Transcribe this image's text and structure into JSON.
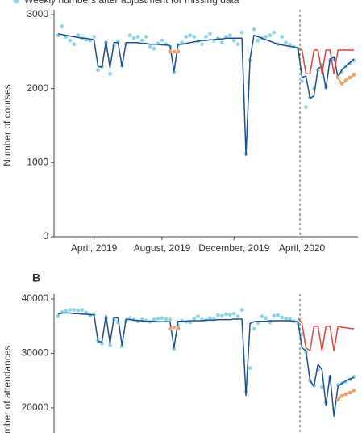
{
  "chart_data": [
    {
      "type": "line",
      "ylabel": "Number of courses",
      "legend": "top-left",
      "x": [
        4,
        5,
        6,
        7,
        8,
        9,
        10,
        11,
        12,
        13,
        14,
        15,
        16,
        17,
        18,
        19,
        20,
        21,
        22,
        23,
        24,
        25,
        26,
        27,
        28,
        29,
        30,
        31,
        32,
        33,
        34,
        35,
        36,
        37,
        38,
        39,
        40,
        41,
        42,
        43,
        44,
        45,
        46,
        47,
        48,
        49,
        50,
        51,
        52,
        53,
        54,
        55,
        56,
        57,
        58,
        59,
        60,
        61,
        62,
        63,
        64,
        65,
        66,
        67,
        68,
        69,
        70,
        71,
        72,
        73,
        74,
        75,
        76,
        77,
        78
      ],
      "xlim": [
        3,
        79
      ],
      "xticks": [
        {
          "value": 13,
          "label": "April, 2019"
        },
        {
          "value": 30,
          "label": "August, 2019"
        },
        {
          "value": 48,
          "label": "December, 2019"
        },
        {
          "value": 65,
          "label": "April, 2020"
        }
      ],
      "ylim": [
        0,
        3000
      ],
      "yticks": [
        0,
        1000,
        2000,
        3000
      ],
      "vline": 64.5,
      "series": [
        {
          "name": "Weekly numbers after adjustment for missing data",
          "style": "dots",
          "color": "#8fd3e8",
          "values": [
            2720,
            2840,
            2700,
            2650,
            2600,
            2720,
            2680,
            2660,
            2650,
            2700,
            2250,
            2300,
            2620,
            2200,
            2580,
            2640,
            2310,
            2600,
            2720,
            2680,
            2700,
            2650,
            2700,
            2560,
            2540,
            2610,
            2650,
            2600,
            2560,
            2220,
            2590,
            2620,
            2700,
            2720,
            2700,
            2640,
            2600,
            2700,
            2740,
            2650,
            2680,
            2620,
            2700,
            2720,
            2650,
            2600,
            2760,
            1120,
            2380,
            2800,
            2650,
            2680,
            2700,
            2720,
            2760,
            2600,
            2700,
            2620,
            2590,
            2560,
            2540,
            2100,
            1750,
            1880,
            2000,
            2250,
            2320,
            2020,
            2380,
            2400,
            2170,
            2230,
            2300,
            2340,
            2380
          ]
        },
        {
          "style": "line",
          "color": "#1c4f8c",
          "values": [
            2740,
            2730,
            2720,
            2710,
            2700,
            2690,
            2680,
            2680,
            2670,
            2660,
            2300,
            2290,
            2640,
            2280,
            2620,
            2620,
            2300,
            2620,
            2620,
            2620,
            2620,
            2610,
            2610,
            2600,
            2600,
            2600,
            2590,
            2590,
            2580,
            2230,
            2600,
            2600,
            2610,
            2620,
            2630,
            2640,
            2650,
            2650,
            2660,
            2660,
            2670,
            2670,
            2680,
            2680,
            2680,
            2680,
            2680,
            1100,
            2400,
            2720,
            2700,
            2680,
            2660,
            2640,
            2620,
            2600,
            2590,
            2580,
            2570,
            2560,
            2550,
            2150,
            2170,
            1870,
            1900,
            2270,
            2300,
            2000,
            2400,
            2430,
            2150,
            2260,
            2300,
            2350,
            2400
          ]
        },
        {
          "style": "line",
          "color": "#e0453a",
          "x": [
            64,
            65,
            66,
            67,
            68,
            69,
            70,
            71,
            72,
            73,
            74,
            75,
            76,
            77,
            78
          ],
          "values": [
            2550,
            2520,
            2200,
            2200,
            2520,
            2520,
            2200,
            2520,
            2520,
            2200,
            2520,
            2520,
            2520,
            2520,
            2520
          ]
        },
        {
          "style": "line",
          "color": "#a8a040",
          "x": [
            74,
            75,
            76,
            77,
            78
          ],
          "values": [
            2150,
            2060,
            2100,
            2150,
            2180
          ]
        },
        {
          "style": "dots",
          "color": "#f0a070",
          "x": [
            32,
            33,
            34,
            74,
            75,
            76,
            77,
            78
          ],
          "values": [
            2500,
            2500,
            2500,
            2150,
            2070,
            2110,
            2150,
            2190
          ]
        }
      ]
    },
    {
      "type": "line",
      "panel_label": "B",
      "ylabel": "Number of attendances",
      "x": [
        4,
        5,
        6,
        7,
        8,
        9,
        10,
        11,
        12,
        13,
        14,
        15,
        16,
        17,
        18,
        19,
        20,
        21,
        22,
        23,
        24,
        25,
        26,
        27,
        28,
        29,
        30,
        31,
        32,
        33,
        34,
        35,
        36,
        37,
        38,
        39,
        40,
        41,
        42,
        43,
        44,
        45,
        46,
        47,
        48,
        49,
        50,
        51,
        52,
        53,
        54,
        55,
        56,
        57,
        58,
        59,
        60,
        61,
        62,
        63,
        64,
        65,
        66,
        67,
        68,
        69,
        70,
        71,
        72,
        73,
        74,
        75,
        76,
        77,
        78
      ],
      "xlim": [
        3,
        79
      ],
      "ylim": [
        15400,
        40000
      ],
      "yticks": [
        20000,
        30000,
        40000
      ],
      "vline": 64.5,
      "series": [
        {
          "style": "dots",
          "color": "#8fd3e8",
          "values": [
            36800,
            37600,
            37800,
            38000,
            38000,
            37900,
            38000,
            37500,
            37000,
            37200,
            32300,
            31800,
            36500,
            31500,
            36200,
            35700,
            31300,
            35900,
            36500,
            36200,
            35900,
            36200,
            36000,
            35800,
            36200,
            36400,
            36500,
            36300,
            36200,
            30800,
            35200,
            36000,
            35800,
            35700,
            36400,
            36800,
            36200,
            36100,
            36500,
            36300,
            37000,
            36900,
            37200,
            37100,
            37300,
            36800,
            38000,
            23000,
            27300,
            34500,
            35600,
            36800,
            36500,
            35700,
            36900,
            37000,
            36600,
            36400,
            36300,
            35900,
            35500,
            33500,
            30300,
            25000,
            24100,
            27000,
            23800,
            21000,
            25500,
            19800,
            24200,
            24500,
            24800,
            25200,
            25700
          ]
        },
        {
          "style": "line",
          "color": "#1c4f8c",
          "values": [
            37200,
            37400,
            37400,
            37400,
            37300,
            37300,
            37200,
            37200,
            37100,
            37100,
            32200,
            32100,
            37000,
            31800,
            36600,
            36500,
            31500,
            36300,
            36200,
            36100,
            36000,
            36000,
            35900,
            35900,
            35900,
            35800,
            35800,
            35800,
            35800,
            31000,
            35900,
            35900,
            35900,
            36000,
            36000,
            36000,
            36000,
            36100,
            36100,
            36100,
            36200,
            36200,
            36200,
            36200,
            36300,
            36300,
            36300,
            22300,
            35500,
            35800,
            35900,
            35900,
            35900,
            36000,
            36000,
            36000,
            36000,
            36000,
            36000,
            35900,
            35800,
            31000,
            30500,
            25000,
            24000,
            28000,
            27000,
            20500,
            26000,
            18500,
            24000,
            24500,
            25000,
            25300,
            25600
          ]
        },
        {
          "style": "line",
          "color": "#e0453a",
          "x": [
            64,
            65,
            66,
            67,
            68,
            69,
            70,
            71,
            72,
            73,
            74,
            75,
            76,
            77,
            78
          ],
          "values": [
            36500,
            35500,
            31000,
            30500,
            35000,
            35000,
            30500,
            35000,
            35000,
            30500,
            35000,
            34800,
            34700,
            34600,
            34500
          ]
        },
        {
          "style": "line",
          "color": "#a8a040",
          "x": [
            74,
            75,
            76,
            77,
            78
          ],
          "values": [
            21500,
            22200,
            22500,
            22800,
            23200
          ]
        },
        {
          "style": "dots",
          "color": "#f0a070",
          "x": [
            32,
            33,
            34,
            74,
            75,
            76,
            77,
            78
          ],
          "values": [
            34500,
            34800,
            34600,
            21500,
            22200,
            22500,
            22800,
            23200
          ]
        }
      ]
    }
  ]
}
